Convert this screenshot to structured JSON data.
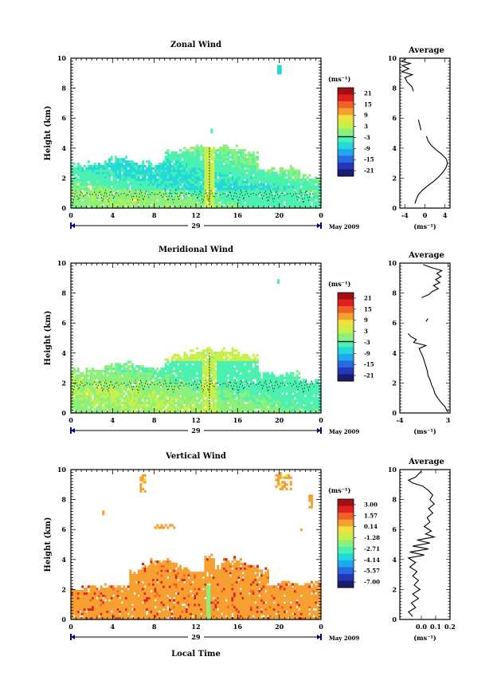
{
  "figure": {
    "xlabel": "Local Time",
    "colors": {
      "frame": "#000000",
      "date_axis": "#00007f",
      "colorbar": [
        "#1a1a6e",
        "#2338b8",
        "#2a6ae0",
        "#1fa8f0",
        "#22d8d8",
        "#4cf0b0",
        "#8cf07a",
        "#c8f04c",
        "#f0e040",
        "#f5a030",
        "#f06028",
        "#e02020",
        "#a01010"
      ]
    },
    "chart_data": [
      {
        "id": "zonal",
        "type": "heatmap",
        "title": "Zonal Wind",
        "ylabel": "Height (km)",
        "ylim": [
          0,
          10
        ],
        "yticks": [
          "0",
          "2",
          "4",
          "6",
          "8",
          "10"
        ],
        "xlim": [
          0,
          24
        ],
        "xtick_values": [
          0,
          4,
          8,
          12,
          16,
          20,
          24
        ],
        "xticks": [
          "0",
          "4",
          "8",
          "12",
          "16",
          "20",
          "0"
        ],
        "date_label": "29",
        "month_label": "May 2009",
        "colorbar": {
          "unit": "(ms⁻¹)",
          "ticks": [
            "21",
            "15",
            "9",
            "3",
            "-3",
            "-9",
            "-15",
            "-21"
          ],
          "range": [
            -24,
            24
          ],
          "zero_line": true
        },
        "field": "zonal",
        "average": {
          "title": "Average",
          "xlim": [
            -5,
            5
          ],
          "xticks": [
            {
              "value": -4,
              "label": "-4"
            },
            {
              "value": 0,
              "label": "0"
            },
            {
              "value": 4,
              "label": "4"
            }
          ],
          "xlabel": "(ms⁻¹)",
          "segments": [
            [
              [
                -2.0,
                0.3
              ],
              [
                -1.7,
                0.6
              ],
              [
                -1.3,
                0.9
              ],
              [
                -0.5,
                1.2
              ],
              [
                0.6,
                1.5
              ],
              [
                1.8,
                1.8
              ],
              [
                2.8,
                2.1
              ],
              [
                3.6,
                2.4
              ],
              [
                4.2,
                2.7
              ],
              [
                4.5,
                3.0
              ],
              [
                4.2,
                3.3
              ],
              [
                3.3,
                3.6
              ],
              [
                2.2,
                3.9
              ],
              [
                1.2,
                4.2
              ],
              [
                0.6,
                4.5
              ],
              [
                0.3,
                4.8
              ]
            ],
            [
              [
                -0.8,
                5.2
              ],
              [
                -1.0,
                5.5
              ],
              [
                -1.3,
                5.9
              ]
            ],
            [
              [
                -2.3,
                7.8
              ],
              [
                -2.6,
                8.1
              ],
              [
                -3.5,
                8.4
              ],
              [
                -4.0,
                8.7
              ],
              [
                -2.5,
                8.9
              ],
              [
                -4.6,
                9.1
              ],
              [
                -3.2,
                9.3
              ],
              [
                -4.5,
                9.5
              ],
              [
                -2.9,
                9.65
              ],
              [
                -4.7,
                9.8
              ],
              [
                -3.8,
                9.95
              ]
            ]
          ]
        }
      },
      {
        "id": "meridional",
        "type": "heatmap",
        "title": "Meridional Wind",
        "ylabel": "Height (km)",
        "ylim": [
          0,
          10
        ],
        "yticks": [
          "0",
          "2",
          "4",
          "6",
          "8",
          "10"
        ],
        "xlim": [
          0,
          24
        ],
        "xtick_values": [
          0,
          4,
          8,
          12,
          16,
          20,
          24
        ],
        "xticks": [
          "0",
          "4",
          "8",
          "12",
          "16",
          "20",
          "0"
        ],
        "date_label": "29",
        "month_label": "May 2009",
        "colorbar": {
          "unit": "(ms⁻¹)",
          "ticks": [
            "21",
            "15",
            "9",
            "3",
            "-3",
            "-9",
            "-15",
            "-21"
          ],
          "range": [
            -24,
            24
          ],
          "zero_line": true
        },
        "field": "meridional",
        "average": {
          "title": "Average",
          "xlim": [
            -4,
            3.3
          ],
          "xticks": [
            {
              "value": -4,
              "label": "-4"
            },
            {
              "value": 3,
              "label": "3"
            }
          ],
          "xlabel": "(ms⁻¹)",
          "segments": [
            [
              [
                2.9,
                0.1
              ],
              [
                2.6,
                0.4
              ],
              [
                2.0,
                0.7
              ],
              [
                1.5,
                1.0
              ],
              [
                1.1,
                1.3
              ],
              [
                0.9,
                1.6
              ],
              [
                0.6,
                1.9
              ],
              [
                0.4,
                2.2
              ],
              [
                0.1,
                2.5
              ],
              [
                0.0,
                2.8
              ],
              [
                -0.2,
                3.1
              ],
              [
                -0.4,
                3.4
              ],
              [
                -0.6,
                3.7
              ],
              [
                -0.9,
                4.0
              ],
              [
                -1.2,
                4.3
              ],
              [
                -0.2,
                4.5
              ],
              [
                -2.0,
                4.7
              ],
              [
                -1.6,
                4.9
              ],
              [
                -2.4,
                5.1
              ],
              [
                -2.8,
                5.3
              ]
            ],
            [
              [
                -0.2,
                6.1
              ],
              [
                0.1,
                6.3
              ]
            ],
            [
              [
                -0.8,
                7.7
              ],
              [
                0.2,
                7.9
              ],
              [
                0.7,
                8.1
              ],
              [
                1.6,
                8.3
              ],
              [
                0.9,
                8.5
              ],
              [
                1.8,
                8.7
              ],
              [
                1.2,
                8.9
              ],
              [
                2.0,
                9.1
              ],
              [
                1.4,
                9.3
              ],
              [
                2.1,
                9.5
              ],
              [
                0.6,
                9.7
              ],
              [
                -0.6,
                9.9
              ]
            ]
          ]
        }
      },
      {
        "id": "vertical",
        "type": "heatmap",
        "title": "Vertical Wind",
        "ylabel": "Height (km)",
        "ylim": [
          0,
          10
        ],
        "yticks": [
          "0",
          "2",
          "4",
          "6",
          "8",
          "10"
        ],
        "xlim": [
          0,
          24
        ],
        "xtick_values": [
          0,
          4,
          8,
          12,
          16,
          20,
          24
        ],
        "xticks": [
          "0",
          "4",
          "8",
          "12",
          "16",
          "20",
          "0"
        ],
        "date_label": "29",
        "month_label": "May 2009",
        "colorbar": {
          "unit": "(ms⁻¹)",
          "ticks": [
            "3.00",
            "1.57",
            "0.14",
            "-1.28",
            "-2.71",
            "-4.14",
            "-5.57",
            "-7.00"
          ],
          "range": [
            -7.7,
            3.7
          ],
          "zero_line": false
        },
        "field": "vertical",
        "average": {
          "title": "Average",
          "xlim": [
            -0.15,
            0.2
          ],
          "xticks": [
            {
              "value": 0,
              "label": "0.0"
            },
            {
              "value": 0.1,
              "label": "0.1"
            },
            {
              "value": 0.2,
              "label": "0.2"
            }
          ],
          "xlabel": "(ms⁻¹)",
          "segments": [
            [
              [
                -0.06,
                0.2
              ],
              [
                -0.09,
                0.5
              ],
              [
                -0.04,
                0.8
              ],
              [
                -0.07,
                1.1
              ],
              [
                -0.02,
                1.4
              ],
              [
                -0.06,
                1.7
              ],
              [
                -0.01,
                2.0
              ],
              [
                -0.05,
                2.3
              ],
              [
                -0.02,
                2.6
              ],
              [
                -0.06,
                2.9
              ],
              [
                -0.03,
                3.2
              ],
              [
                -0.08,
                3.5
              ],
              [
                -0.04,
                3.8
              ],
              [
                -0.09,
                4.1
              ],
              [
                0.02,
                4.3
              ],
              [
                -0.08,
                4.5
              ],
              [
                0.05,
                4.7
              ],
              [
                -0.06,
                4.9
              ],
              [
                0.06,
                5.1
              ],
              [
                -0.03,
                5.3
              ],
              [
                0.09,
                5.5
              ],
              [
                0.03,
                5.7
              ],
              [
                0.07,
                5.9
              ],
              [
                0.02,
                6.2
              ],
              [
                0.06,
                6.5
              ],
              [
                0.04,
                6.8
              ],
              [
                0.08,
                7.1
              ],
              [
                0.05,
                7.4
              ],
              [
                0.09,
                7.7
              ],
              [
                0.06,
                8.0
              ],
              [
                0.08,
                8.3
              ],
              [
                0.05,
                8.6
              ],
              [
                0.01,
                8.9
              ],
              [
                -0.06,
                9.1
              ],
              [
                -0.09,
                9.3
              ],
              [
                -0.04,
                9.5
              ],
              [
                -0.02,
                9.7
              ],
              [
                0.0,
                9.9
              ]
            ]
          ]
        }
      }
    ]
  }
}
